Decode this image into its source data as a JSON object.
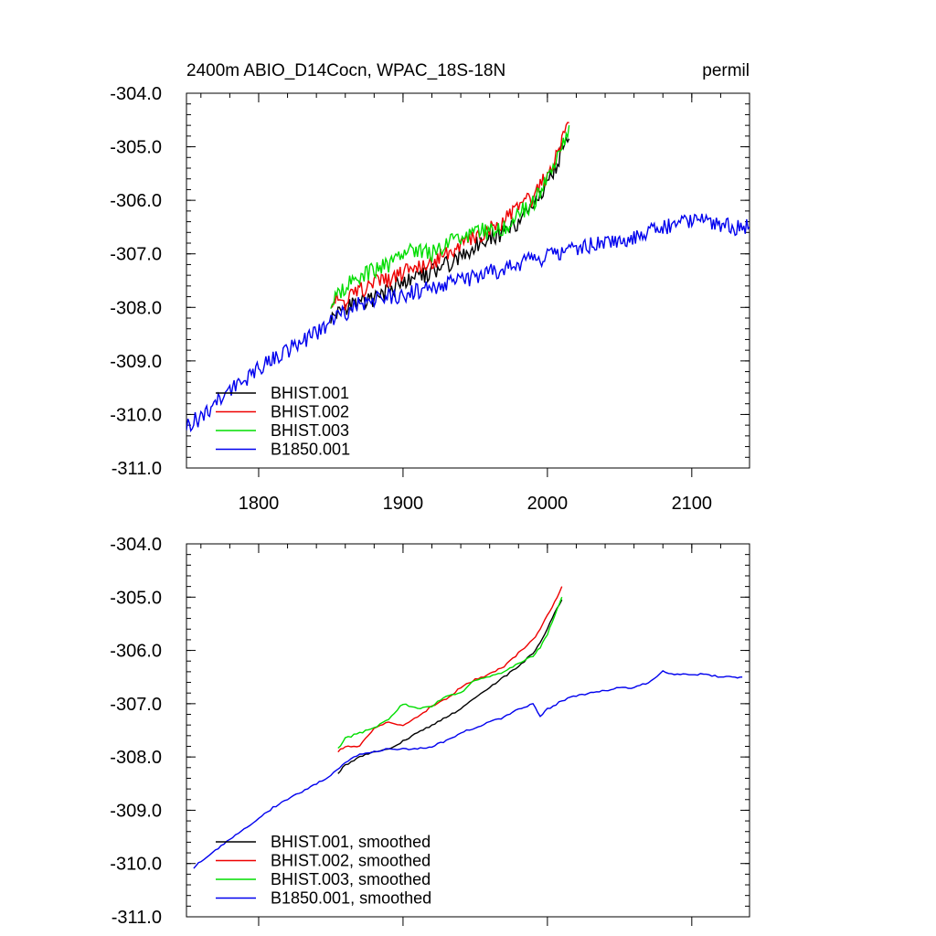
{
  "colors": {
    "BHIST.001": "#000000",
    "BHIST.002": "#ee0000",
    "BHIST.003": "#00dd00",
    "B1850.001": "#0000ee"
  },
  "chart_data": [
    {
      "type": "line",
      "title": "2400m ABIO_D14Cocn, WPAC_18S-18N",
      "units_label": "permil",
      "xlim": [
        1750,
        2140
      ],
      "ylim": [
        -311,
        -304
      ],
      "xticks": [
        1800,
        1900,
        2000,
        2100
      ],
      "xtick_labels": [
        "1800",
        "1900",
        "2000",
        "2100"
      ],
      "yticks": [
        -304,
        -305,
        -306,
        -307,
        -308,
        -309,
        -310,
        -311
      ],
      "ytick_labels": [
        "-304.0",
        "-305.0",
        "-306.0",
        "-307.0",
        "-308.0",
        "-309.0",
        "-310.0",
        "-311.0"
      ],
      "legend_position": "bottom-left",
      "series": [
        {
          "name": "BHIST.001",
          "label": "BHIST.001",
          "x": [
            1850,
            1860,
            1870,
            1880,
            1890,
            1900,
            1910,
            1920,
            1930,
            1940,
            1950,
            1960,
            1970,
            1980,
            1990,
            1995,
            2000,
            2005,
            2010,
            2015
          ],
          "y": [
            -308.2,
            -308.0,
            -307.9,
            -307.85,
            -307.7,
            -307.55,
            -307.45,
            -307.35,
            -307.2,
            -307.05,
            -306.85,
            -306.7,
            -306.6,
            -306.4,
            -306.1,
            -305.95,
            -305.75,
            -305.4,
            -305.1,
            -304.85
          ]
        },
        {
          "name": "BHIST.002",
          "label": "BHIST.002",
          "x": [
            1850,
            1860,
            1870,
            1880,
            1890,
            1900,
            1910,
            1920,
            1930,
            1940,
            1950,
            1960,
            1970,
            1980,
            1990,
            1995,
            2000,
            2005,
            2010,
            2015
          ],
          "y": [
            -307.85,
            -307.9,
            -307.7,
            -307.55,
            -307.5,
            -307.35,
            -307.25,
            -307.15,
            -307.0,
            -306.85,
            -306.7,
            -306.55,
            -306.35,
            -306.15,
            -305.95,
            -305.75,
            -305.5,
            -305.2,
            -304.95,
            -304.55
          ]
        },
        {
          "name": "BHIST.003",
          "label": "BHIST.003",
          "x": [
            1850,
            1860,
            1870,
            1880,
            1890,
            1900,
            1910,
            1920,
            1930,
            1940,
            1950,
            1960,
            1970,
            1980,
            1990,
            1995,
            2000,
            2005,
            2010,
            2015
          ],
          "y": [
            -307.95,
            -307.6,
            -307.4,
            -307.3,
            -307.2,
            -307.0,
            -306.9,
            -307.0,
            -306.8,
            -306.75,
            -306.55,
            -306.6,
            -306.5,
            -306.25,
            -306.05,
            -305.85,
            -305.6,
            -305.35,
            -305.0,
            -304.6
          ]
        },
        {
          "name": "B1850.001",
          "label": "B1850.001",
          "x": [
            1750,
            1760,
            1770,
            1780,
            1790,
            1800,
            1810,
            1820,
            1830,
            1840,
            1850,
            1860,
            1870,
            1880,
            1890,
            1900,
            1910,
            1920,
            1930,
            1940,
            1950,
            1960,
            1970,
            1980,
            1990,
            2000,
            2010,
            2020,
            2030,
            2040,
            2050,
            2060,
            2070,
            2080,
            2090,
            2100,
            2110,
            2120,
            2130,
            2140
          ],
          "y": [
            -310.2,
            -310.05,
            -309.8,
            -309.55,
            -309.35,
            -309.15,
            -308.95,
            -308.8,
            -308.65,
            -308.5,
            -308.3,
            -308.1,
            -307.95,
            -307.85,
            -307.8,
            -307.75,
            -307.7,
            -307.65,
            -307.55,
            -307.5,
            -307.45,
            -307.35,
            -307.3,
            -307.2,
            -307.1,
            -307.05,
            -306.95,
            -306.9,
            -306.85,
            -306.8,
            -306.75,
            -306.7,
            -306.6,
            -306.5,
            -306.4,
            -306.35,
            -306.4,
            -306.45,
            -306.5,
            -306.5
          ]
        }
      ]
    },
    {
      "type": "line",
      "title": "",
      "xlim": [
        1750,
        2140
      ],
      "ylim": [
        -311,
        -304
      ],
      "xticks": [
        1800,
        1900,
        2000,
        2100
      ],
      "xtick_labels": [],
      "yticks": [
        -304,
        -305,
        -306,
        -307,
        -308,
        -309,
        -310,
        -311
      ],
      "ytick_labels": [
        "-304.0",
        "-305.0",
        "-306.0",
        "-307.0",
        "-308.0",
        "-309.0",
        "-310.0",
        "-311.0"
      ],
      "legend_position": "bottom-left",
      "series": [
        {
          "name": "BHIST.001",
          "label": "BHIST.001, smoothed",
          "x": [
            1855,
            1860,
            1870,
            1880,
            1890,
            1900,
            1910,
            1920,
            1930,
            1940,
            1950,
            1960,
            1970,
            1980,
            1990,
            1995,
            2000,
            2005,
            2010
          ],
          "y": [
            -308.3,
            -308.15,
            -308.0,
            -307.9,
            -307.85,
            -307.7,
            -307.55,
            -307.4,
            -307.25,
            -307.1,
            -306.9,
            -306.7,
            -306.5,
            -306.3,
            -306.05,
            -305.85,
            -305.6,
            -305.3,
            -305.05
          ]
        },
        {
          "name": "BHIST.002",
          "label": "BHIST.002, smoothed",
          "x": [
            1855,
            1860,
            1870,
            1880,
            1890,
            1900,
            1910,
            1920,
            1930,
            1940,
            1950,
            1960,
            1970,
            1980,
            1990,
            1995,
            2000,
            2005,
            2010
          ],
          "y": [
            -307.9,
            -307.8,
            -307.8,
            -307.45,
            -307.35,
            -307.4,
            -307.25,
            -307.05,
            -306.9,
            -306.7,
            -306.55,
            -306.45,
            -306.3,
            -306.05,
            -305.8,
            -305.6,
            -305.35,
            -305.1,
            -304.8
          ]
        },
        {
          "name": "BHIST.003",
          "label": "BHIST.003, smoothed",
          "x": [
            1855,
            1860,
            1870,
            1880,
            1890,
            1900,
            1910,
            1920,
            1930,
            1940,
            1950,
            1960,
            1970,
            1980,
            1990,
            1995,
            2000,
            2005,
            2010
          ],
          "y": [
            -307.85,
            -307.65,
            -307.55,
            -307.45,
            -307.3,
            -307.0,
            -307.1,
            -307.05,
            -306.85,
            -306.8,
            -306.55,
            -306.5,
            -306.4,
            -306.25,
            -306.1,
            -305.95,
            -305.7,
            -305.35,
            -305.0
          ]
        },
        {
          "name": "B1850.001",
          "label": "B1850.001, smoothed",
          "x": [
            1755,
            1760,
            1770,
            1780,
            1790,
            1800,
            1810,
            1820,
            1830,
            1840,
            1850,
            1860,
            1870,
            1880,
            1890,
            1900,
            1910,
            1920,
            1930,
            1940,
            1950,
            1960,
            1970,
            1980,
            1990,
            1995,
            2000,
            2010,
            2020,
            2030,
            2040,
            2050,
            2060,
            2070,
            2080,
            2090,
            2100,
            2110,
            2120,
            2130,
            2135
          ],
          "y": [
            -310.1,
            -309.95,
            -309.75,
            -309.55,
            -309.35,
            -309.15,
            -308.95,
            -308.8,
            -308.65,
            -308.5,
            -308.35,
            -308.1,
            -307.95,
            -307.9,
            -307.85,
            -307.85,
            -307.85,
            -307.8,
            -307.7,
            -307.55,
            -307.45,
            -307.35,
            -307.25,
            -307.1,
            -307.0,
            -307.25,
            -307.1,
            -306.95,
            -306.85,
            -306.8,
            -306.75,
            -306.7,
            -306.7,
            -306.6,
            -306.4,
            -306.45,
            -306.45,
            -306.45,
            -306.5,
            -306.5,
            -306.5
          ]
        }
      ]
    }
  ]
}
